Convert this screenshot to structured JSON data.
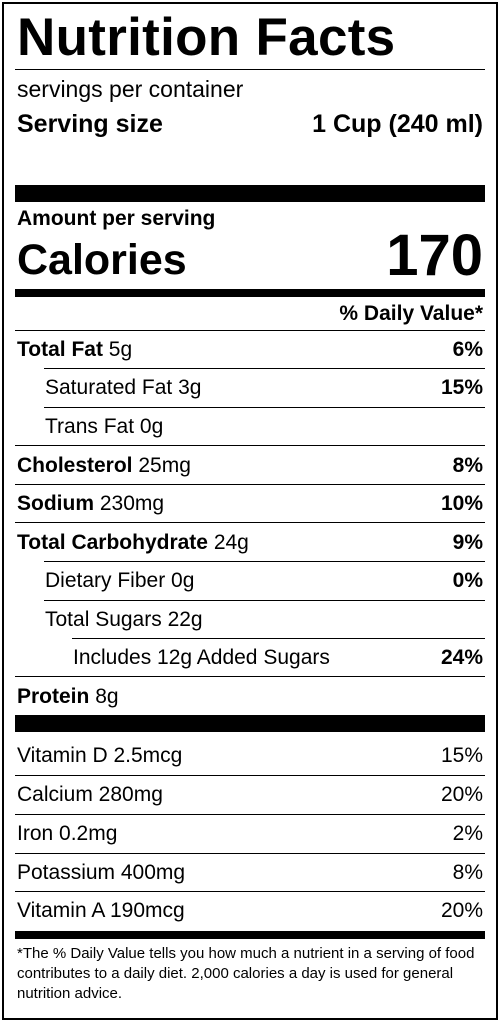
{
  "title": "Nutrition Facts",
  "servings_text": "servings per container",
  "serving_size_label": "Serving size",
  "serving_size_value": "1 Cup (240 ml)",
  "amount_per_serving": "Amount per serving",
  "calories_label": "Calories",
  "calories_value": "170",
  "dv_header": "% Daily Value*",
  "nutrients": {
    "total_fat": {
      "label": "Total Fat",
      "amount": "5g",
      "dv": "6%"
    },
    "saturated_fat": {
      "label": "Saturated Fat 3g",
      "dv": "15%"
    },
    "trans_fat": {
      "label": "Trans Fat 0g"
    },
    "cholesterol": {
      "label": "Cholesterol",
      "amount": "25mg",
      "dv": "8%"
    },
    "sodium": {
      "label": "Sodium",
      "amount": "230mg",
      "dv": "10%"
    },
    "total_carb": {
      "label": "Total Carbohydrate",
      "amount": "24g",
      "dv": "9%"
    },
    "fiber": {
      "label": "Dietary Fiber 0g",
      "dv": "0%"
    },
    "total_sugars": {
      "label": "Total Sugars 22g"
    },
    "added_sugars": {
      "label": "Includes 12g Added Sugars",
      "dv": "24%"
    },
    "protein": {
      "label": "Protein",
      "amount": "8g"
    }
  },
  "vitamins": [
    {
      "label": "Vitamin D 2.5mcg",
      "dv": "15%"
    },
    {
      "label": "Calcium 280mg",
      "dv": "20%"
    },
    {
      "label": "Iron 0.2mg",
      "dv": "2%"
    },
    {
      "label": "Potassium 400mg",
      "dv": "8%"
    },
    {
      "label": "Vitamin A 190mcg",
      "dv": "20%"
    }
  ],
  "footnote": "*The % Daily Value tells you how much a nutrient in a serving of food contributes to a daily diet. 2,000 calories a day is used for general nutrition advice."
}
